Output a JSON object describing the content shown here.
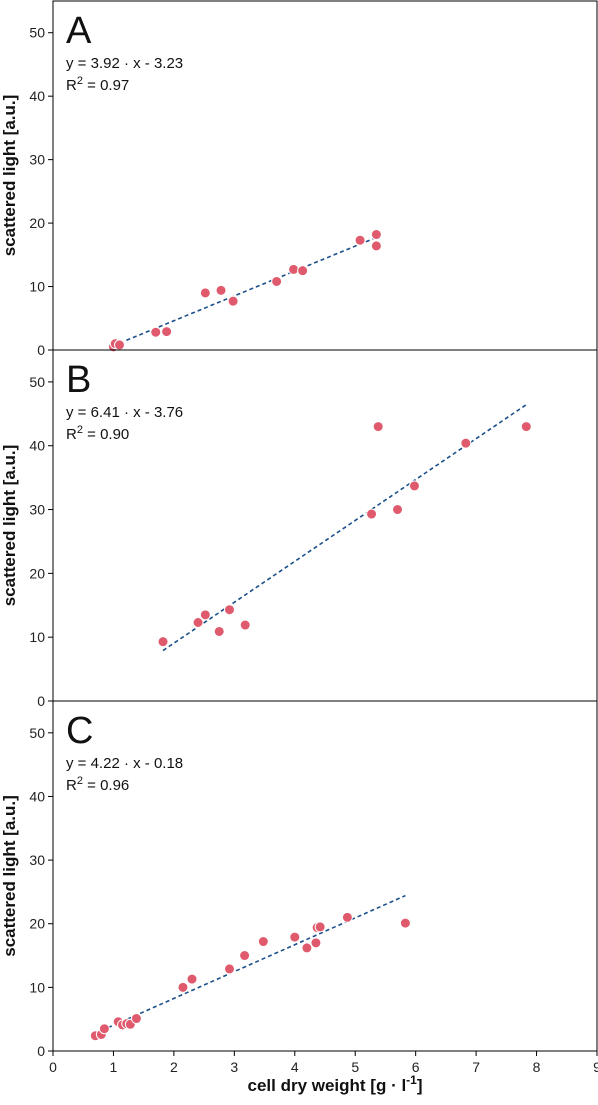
{
  "chart_data": [
    {
      "type": "scatter",
      "panel_label": "A",
      "equation": "y = 3.92 · x - 3.23",
      "r2_prefix": "R",
      "r2_sup": "2",
      "r2_value": " = 0.97",
      "ylabel": "scattered light [a.u.]",
      "xlim": [
        0,
        9
      ],
      "ylim": [
        0,
        55
      ],
      "yticks": [
        0,
        10,
        20,
        30,
        40,
        50
      ],
      "points": [
        {
          "x": 1.0,
          "y": 0.5
        },
        {
          "x": 1.03,
          "y": 1.0
        },
        {
          "x": 1.1,
          "y": 0.8
        },
        {
          "x": 1.7,
          "y": 2.8
        },
        {
          "x": 1.88,
          "y": 2.9
        },
        {
          "x": 2.52,
          "y": 9.0
        },
        {
          "x": 2.78,
          "y": 9.4
        },
        {
          "x": 2.98,
          "y": 7.7
        },
        {
          "x": 3.7,
          "y": 10.8
        },
        {
          "x": 3.98,
          "y": 12.7
        },
        {
          "x": 4.13,
          "y": 12.5
        },
        {
          "x": 5.08,
          "y": 17.3
        },
        {
          "x": 5.35,
          "y": 18.2
        },
        {
          "x": 5.35,
          "y": 16.4
        }
      ],
      "fit": {
        "slope": 3.92,
        "intercept": -3.23,
        "x_range": [
          1.0,
          5.37
        ]
      },
      "point_color": "#e05a6d",
      "line_color": "#1a4f8a"
    },
    {
      "type": "scatter",
      "panel_label": "B",
      "equation": "y = 6.41 · x - 3.76",
      "r2_prefix": "R",
      "r2_sup": "2",
      "r2_value": " = 0.90",
      "ylabel": "scattered light [a.u.]",
      "xlim": [
        0,
        9
      ],
      "ylim": [
        0,
        55
      ],
      "yticks": [
        0,
        10,
        20,
        30,
        40,
        50
      ],
      "points": [
        {
          "x": 1.82,
          "y": 9.3
        },
        {
          "x": 2.4,
          "y": 12.3
        },
        {
          "x": 2.52,
          "y": 13.5
        },
        {
          "x": 2.75,
          "y": 10.9
        },
        {
          "x": 2.92,
          "y": 14.3
        },
        {
          "x": 3.18,
          "y": 11.9
        },
        {
          "x": 5.27,
          "y": 29.3
        },
        {
          "x": 5.38,
          "y": 43.0
        },
        {
          "x": 5.7,
          "y": 30.0
        },
        {
          "x": 5.98,
          "y": 33.7
        },
        {
          "x": 6.83,
          "y": 40.4
        },
        {
          "x": 7.83,
          "y": 43.0
        }
      ],
      "fit": {
        "slope": 6.41,
        "intercept": -3.76,
        "x_range": [
          1.82,
          7.83
        ]
      },
      "point_color": "#e05a6d",
      "line_color": "#1a4f8a"
    },
    {
      "type": "scatter",
      "panel_label": "C",
      "equation": "y = 4.22 · x - 0.18",
      "r2_prefix": "R",
      "r2_sup": "2",
      "r2_value": " = 0.96",
      "ylabel": "scattered light [a.u.]",
      "xlabel_main": "cell dry weight [g · l",
      "xlabel_sup": "-1",
      "xlabel_tail": "]",
      "xlim": [
        0,
        9
      ],
      "ylim": [
        0,
        55
      ],
      "yticks": [
        0,
        10,
        20,
        30,
        40,
        50
      ],
      "xticks": [
        0,
        1,
        2,
        3,
        4,
        5,
        6,
        7,
        8,
        9
      ],
      "points": [
        {
          "x": 0.7,
          "y": 2.4
        },
        {
          "x": 0.8,
          "y": 2.6
        },
        {
          "x": 0.85,
          "y": 3.5
        },
        {
          "x": 1.08,
          "y": 4.6
        },
        {
          "x": 1.15,
          "y": 4.1
        },
        {
          "x": 1.22,
          "y": 4.3
        },
        {
          "x": 1.28,
          "y": 4.2
        },
        {
          "x": 1.38,
          "y": 5.1
        },
        {
          "x": 2.15,
          "y": 10.0
        },
        {
          "x": 2.3,
          "y": 11.3
        },
        {
          "x": 2.92,
          "y": 12.9
        },
        {
          "x": 3.17,
          "y": 15.0
        },
        {
          "x": 3.48,
          "y": 17.2
        },
        {
          "x": 4.0,
          "y": 17.9
        },
        {
          "x": 4.2,
          "y": 16.2
        },
        {
          "x": 4.35,
          "y": 17.0
        },
        {
          "x": 4.37,
          "y": 19.4
        },
        {
          "x": 4.42,
          "y": 19.5
        },
        {
          "x": 4.87,
          "y": 21.0
        },
        {
          "x": 5.83,
          "y": 20.1
        }
      ],
      "fit": {
        "slope": 4.22,
        "intercept": -0.18,
        "x_range": [
          0.7,
          5.83
        ]
      },
      "point_color": "#e05a6d",
      "line_color": "#1a4f8a"
    }
  ]
}
